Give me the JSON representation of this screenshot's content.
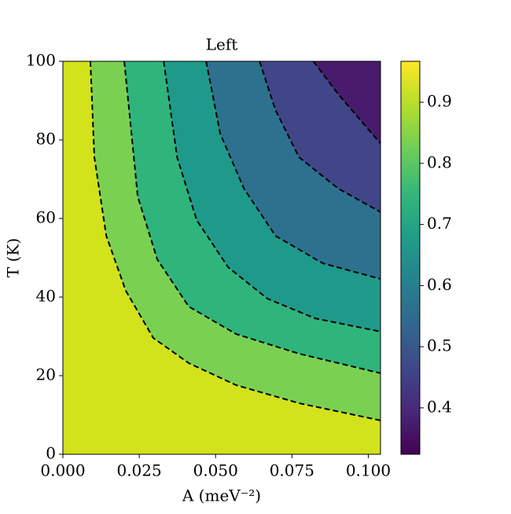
{
  "chart_data": {
    "type": "contour",
    "title": "Left",
    "x_label": "A (meV⁻²)",
    "y_label": "T (K)",
    "xlim": [
      0,
      0.104
    ],
    "ylim": [
      0,
      100
    ],
    "xticks": [
      {
        "value": 0,
        "label": "0.000"
      },
      0.025,
      {
        "value": 0.05,
        "label": "0.050"
      },
      0.075,
      {
        "value": 0.1,
        "label": "0.100"
      }
    ],
    "yticks": [
      0,
      20,
      40,
      60,
      80,
      100
    ],
    "colormap": "viridis",
    "clim": [
      0.324,
      0.967
    ],
    "cticks": [
      0.4,
      0.5,
      0.6,
      0.7,
      0.8,
      0.9
    ],
    "fill_colors": [
      "#d2e21b",
      "#7ad151",
      "#2fb47c",
      "#1f9a8a",
      "#2d718e",
      "#404688",
      "#481b6d"
    ],
    "line_color": "#000000",
    "contours": [
      {
        "x": [
          0.009,
          0.0103,
          0.0142,
          0.0206,
          0.0296,
          0.0412,
          0.0567,
          0.0773,
          0.1041
        ],
        "y": [
          100,
          75.6,
          55.6,
          41.6,
          29.6,
          23.2,
          17.6,
          13,
          8.6
        ]
      },
      {
        "x": [
          0.0201,
          0.0245,
          0.0309,
          0.0412,
          0.0567,
          0.0773,
          0.1041
        ],
        "y": [
          100,
          65.6,
          49.6,
          37.6,
          30.6,
          25.6,
          20.6
        ]
      },
      {
        "x": [
          0.033,
          0.0374,
          0.0438,
          0.0541,
          0.067,
          0.0825,
          0.1041
        ],
        "y": [
          100,
          75.6,
          59.6,
          47.6,
          39.6,
          34.6,
          31.2
        ]
      },
      {
        "x": [
          0.0469,
          0.0515,
          0.0593,
          0.0696,
          0.0851,
          0.1041
        ],
        "y": [
          100,
          81.6,
          67.6,
          55.6,
          48.6,
          44.6
        ]
      },
      {
        "x": [
          0.0644,
          0.0696,
          0.0773,
          0.0902,
          0.1041
        ],
        "y": [
          100,
          87.6,
          75.6,
          67.6,
          61.6
        ]
      },
      {
        "x": [
          0.082,
          0.0902,
          0.0979,
          0.1041
        ],
        "y": [
          100,
          91.6,
          84.6,
          79
        ]
      }
    ]
  }
}
